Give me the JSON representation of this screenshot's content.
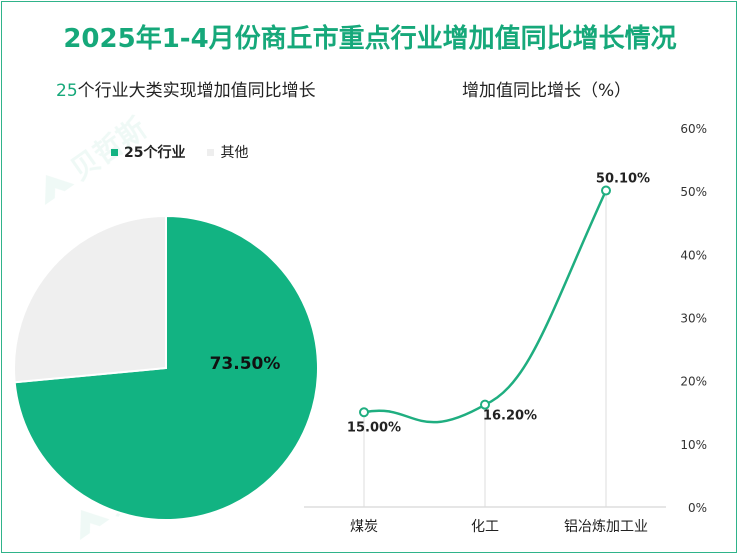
{
  "title": "2025年1-4月份商丘市重点行业增加值同比增长情况",
  "chart_data": [
    {
      "type": "pie",
      "title_parts": [
        "25",
        "个行业大类实现增加值同比增长"
      ],
      "legend": [
        "25个行业",
        "其他"
      ],
      "slices": [
        {
          "name": "25个行业",
          "value": 73.5,
          "label": "73.50%",
          "color": "#12b382"
        },
        {
          "name": "其他",
          "value": 26.5,
          "label": "",
          "color": "#efefef"
        }
      ]
    },
    {
      "type": "line",
      "title": "增加值同比增长（%）",
      "categories": [
        "煤炭",
        "化工",
        "铝冶炼加工业"
      ],
      "values": [
        15.0,
        16.2,
        50.1
      ],
      "point_labels": [
        "15.00%",
        "16.20%",
        "50.10%"
      ],
      "ylim": [
        0,
        60
      ],
      "yticks": [
        0,
        10,
        20,
        30,
        40,
        50,
        60
      ],
      "ytick_labels": [
        "0%",
        "10%",
        "20%",
        "30%",
        "40%",
        "50%",
        "60%"
      ],
      "y_axis_position": "right",
      "color": "#1fae80"
    }
  ]
}
